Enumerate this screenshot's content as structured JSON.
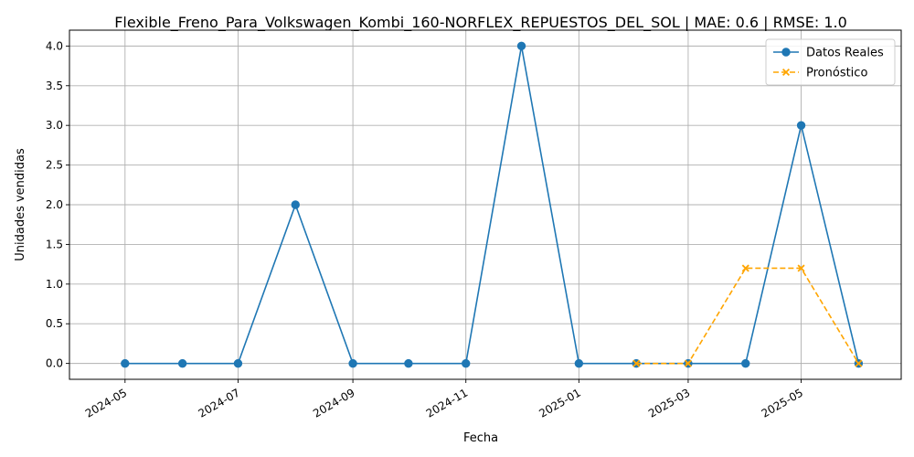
{
  "chart_data": {
    "type": "line",
    "title": "Flexible_Freno_Para_Volkswagen_Kombi_160-NORFLEX_REPUESTOS_DEL_SOL | MAE: 0.6 | RMSE: 1.0",
    "xlabel": "Fecha",
    "ylabel": "Unidades vendidas",
    "x_ticks": [
      "2024-05",
      "2024-07",
      "2024-09",
      "2024-11",
      "2025-01",
      "2025-03",
      "2025-05"
    ],
    "y_ticks": [
      "0.0",
      "0.5",
      "1.0",
      "1.5",
      "2.0",
      "2.5",
      "3.0",
      "3.5",
      "4.0"
    ],
    "xlim": [
      "2024-04-01",
      "2025-06-24"
    ],
    "ylim": [
      -0.2,
      4.2
    ],
    "grid": true,
    "legend_position": "top-right",
    "series": [
      {
        "name": "Datos Reales",
        "color": "#1f77b4",
        "marker": "circle",
        "line_style": "solid",
        "x": [
          "2024-05-01",
          "2024-06-01",
          "2024-07-01",
          "2024-08-01",
          "2024-09-01",
          "2024-10-01",
          "2024-11-01",
          "2024-12-01",
          "2025-01-01",
          "2025-02-01",
          "2025-03-01",
          "2025-04-01",
          "2025-05-01",
          "2025-06-01"
        ],
        "values": [
          0,
          0,
          0,
          2,
          0,
          0,
          0,
          4,
          0,
          0,
          0,
          0,
          3,
          0
        ]
      },
      {
        "name": "Pronóstico",
        "color": "#ffa500",
        "marker": "x",
        "line_style": "dashed",
        "x": [
          "2025-02-01",
          "2025-03-01",
          "2025-04-01",
          "2025-05-01",
          "2025-06-01"
        ],
        "values": [
          0,
          0,
          1.2,
          1.2,
          0
        ]
      }
    ]
  }
}
